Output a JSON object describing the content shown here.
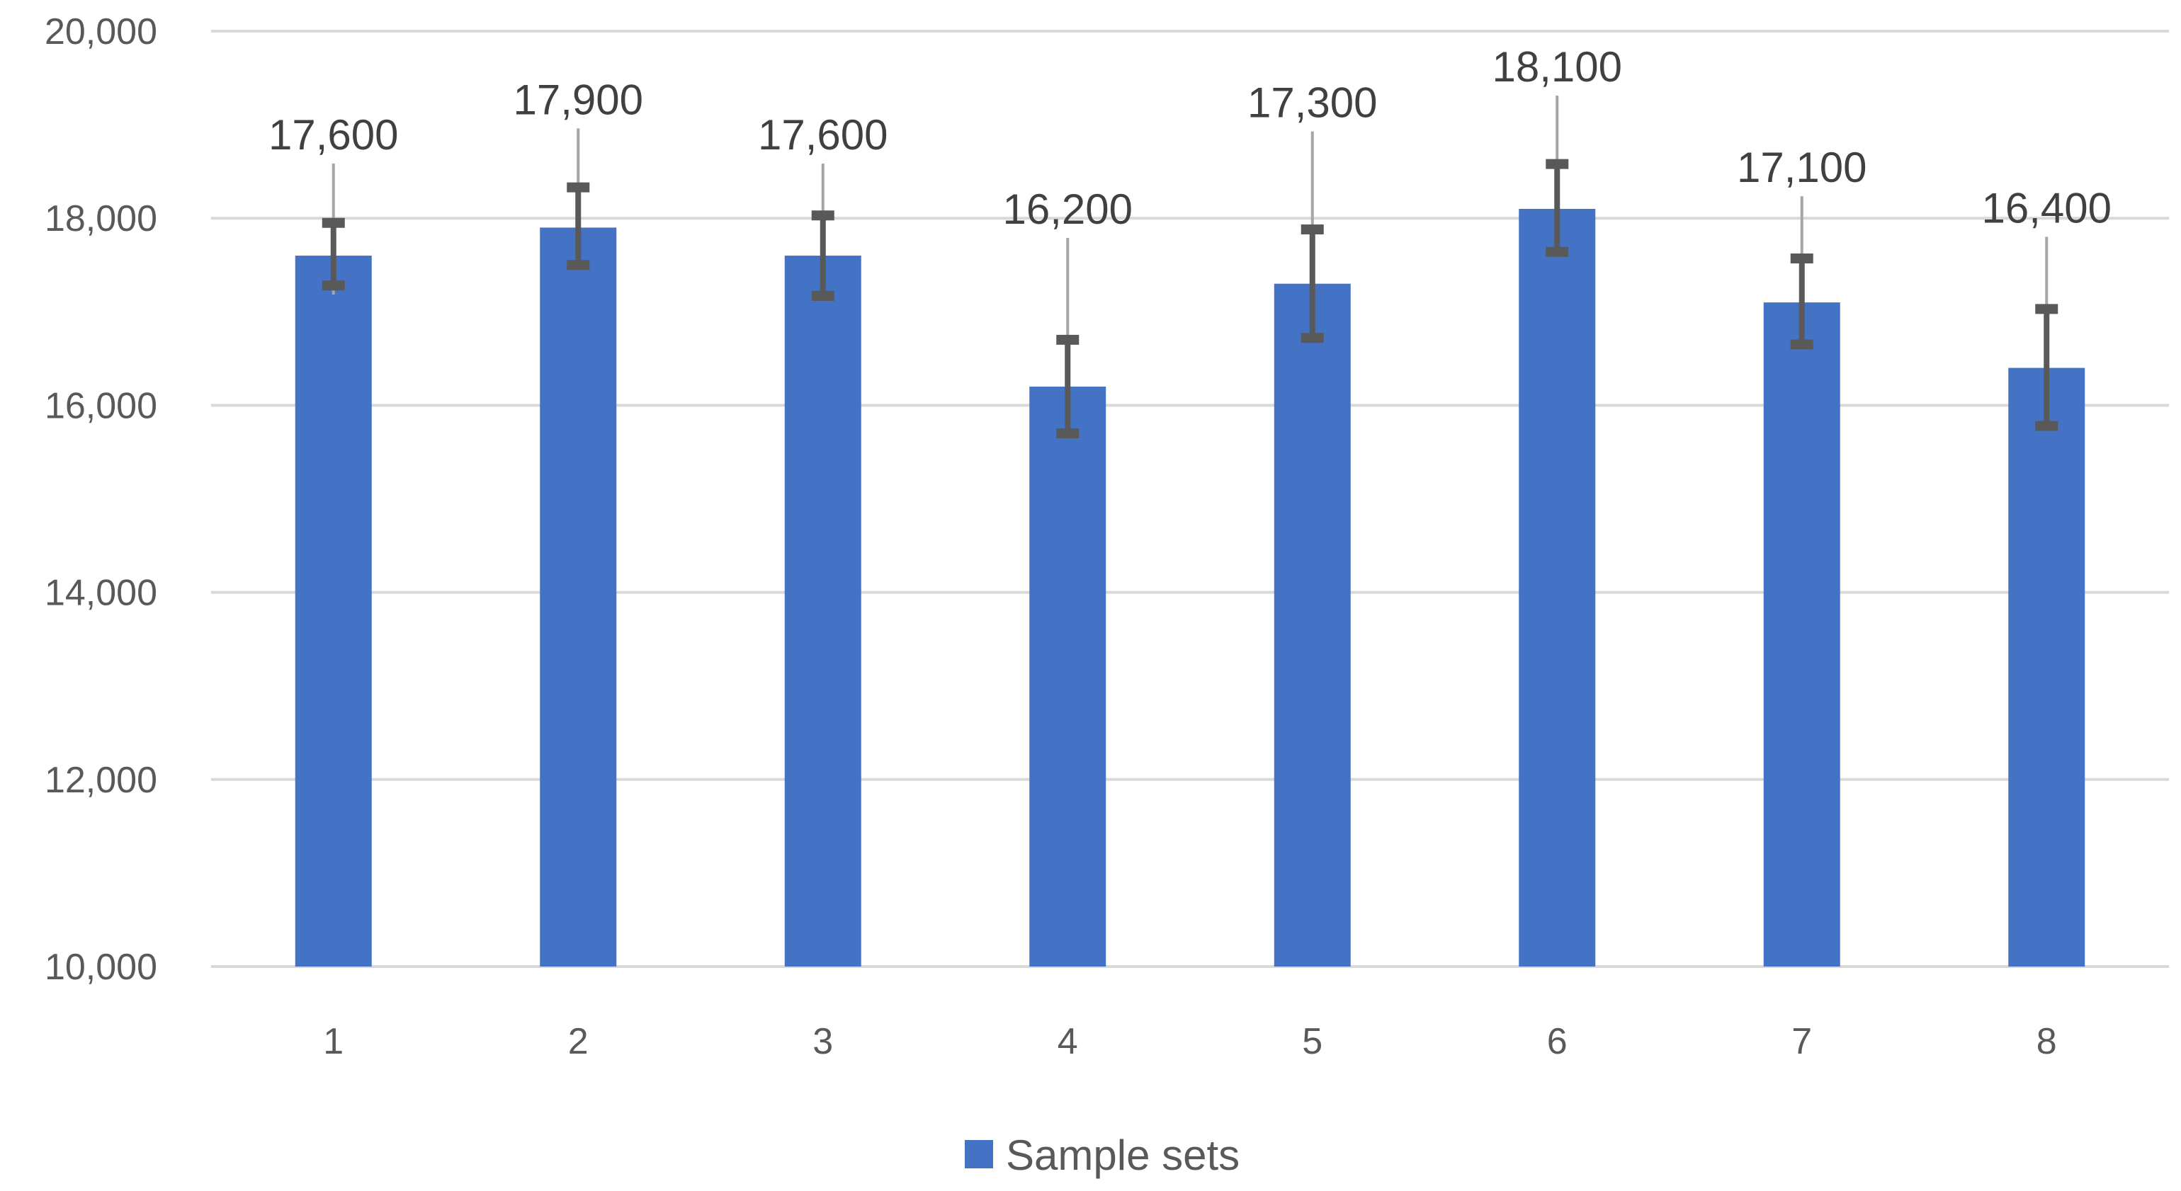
{
  "chart_data": {
    "type": "bar",
    "categories": [
      "1",
      "2",
      "3",
      "4",
      "5",
      "6",
      "7",
      "8"
    ],
    "series": [
      {
        "name": "Sample sets",
        "values": [
          17600,
          17900,
          17600,
          16200,
          17300,
          18100,
          17100,
          16400
        ],
        "error_low": [
          17280,
          17500,
          17170,
          15700,
          16720,
          17640,
          16650,
          15780
        ],
        "error_high": [
          17950,
          18330,
          18030,
          16700,
          17880,
          18580,
          17570,
          17030
        ],
        "color": "#4472C4"
      }
    ],
    "data_labels": [
      "17,600",
      "17,900",
      "17,600",
      "16,200",
      "17,300",
      "18,100",
      "17,100",
      "16,400"
    ],
    "ylim": [
      10000,
      20000
    ],
    "yticks": [
      {
        "value": 10000,
        "label": "10,000"
      },
      {
        "value": 12000,
        "label": "12,000"
      },
      {
        "value": 14000,
        "label": "14,000"
      },
      {
        "value": 16000,
        "label": "16,000"
      },
      {
        "value": 18000,
        "label": "18,000"
      },
      {
        "value": 20000,
        "label": "20,000"
      }
    ],
    "grid": true,
    "legend_position": "bottom",
    "colors": {
      "grid": "#d9d9d9",
      "error_bar": "#595959",
      "leader_line": "#a6a6a6"
    }
  }
}
